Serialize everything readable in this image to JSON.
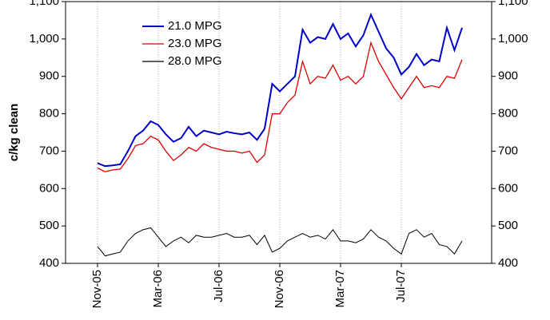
{
  "chart_data": {
    "type": "line",
    "y_label": "c/kg clean",
    "categories": [
      "Nov-05",
      null,
      null,
      null,
      null,
      null,
      null,
      null,
      "Mar-06",
      null,
      null,
      null,
      null,
      null,
      null,
      null,
      "Jul-06",
      null,
      null,
      null,
      null,
      null,
      null,
      null,
      "Nov-06",
      null,
      null,
      null,
      null,
      null,
      null,
      null,
      "Mar-07",
      null,
      null,
      null,
      null,
      null,
      null,
      null,
      "Jul-07",
      null,
      null,
      null,
      null,
      null,
      null,
      null,
      null
    ],
    "series": [
      {
        "name": "21.0 MPG",
        "color": "#0000cc",
        "values": [
          668,
          660,
          662,
          665,
          700,
          740,
          755,
          780,
          770,
          745,
          725,
          735,
          765,
          740,
          755,
          750,
          745,
          752,
          748,
          745,
          750,
          730,
          760,
          880,
          860,
          880,
          900,
          1025,
          990,
          1005,
          1000,
          1040,
          1000,
          1015,
          980,
          1010,
          1065,
          1020,
          975,
          950,
          905,
          925,
          960,
          930,
          945,
          940,
          1030,
          970,
          1030
        ]
      },
      {
        "name": "23.0 MPG",
        "color": "#dd0000",
        "values": [
          655,
          645,
          650,
          652,
          680,
          715,
          720,
          740,
          730,
          700,
          675,
          690,
          710,
          700,
          720,
          710,
          705,
          700,
          700,
          695,
          700,
          670,
          690,
          800,
          800,
          830,
          850,
          940,
          880,
          900,
          895,
          930,
          890,
          900,
          880,
          900,
          990,
          940,
          905,
          870,
          840,
          870,
          900,
          870,
          875,
          870,
          900,
          895,
          945
        ]
      },
      {
        "name": "28.0 MPG",
        "color": "#000000",
        "values": [
          445,
          420,
          425,
          430,
          460,
          480,
          490,
          495,
          470,
          445,
          460,
          470,
          455,
          475,
          470,
          470,
          475,
          480,
          470,
          470,
          475,
          450,
          475,
          430,
          440,
          460,
          470,
          480,
          470,
          475,
          465,
          490,
          460,
          460,
          455,
          465,
          490,
          470,
          460,
          440,
          425,
          480,
          490,
          470,
          480,
          450,
          445,
          425,
          460
        ]
      }
    ],
    "ylim": [
      400,
      1100
    ],
    "yticks": [
      400,
      500,
      600,
      700,
      800,
      900,
      {
        "value": 1000,
        "label": "1,000"
      },
      {
        "value": 1100,
        "label": "1,100"
      }
    ],
    "y2lim": [
      400,
      1100
    ],
    "y2ticks": [
      400,
      500,
      600,
      700,
      800,
      900,
      {
        "value": 1000,
        "label": "1,000"
      },
      {
        "value": 1100,
        "label": "1,100"
      }
    ],
    "x_grid": true,
    "legend": "upper left"
  }
}
